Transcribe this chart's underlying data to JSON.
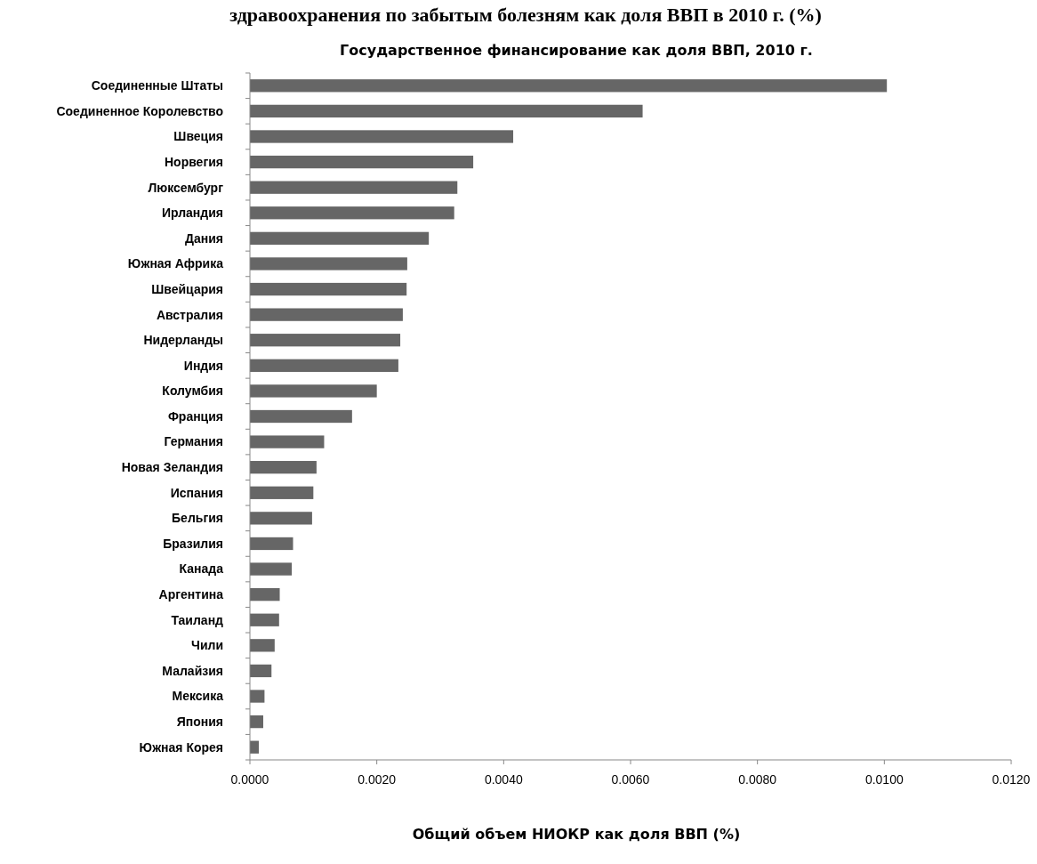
{
  "chart_data": {
    "type": "bar",
    "orientation": "horizontal",
    "title": "здравоохранения по забытым болезням как доля ВВП в 2010 г. (%)",
    "subtitle": "Государственное финансирование как доля ВВП,   2010 г.",
    "xlabel": "Общий объем НИОКР как доля ВВП (%)",
    "categories": [
      "Соединенные Штаты",
      "Соединенное Королевство",
      "Швеция",
      "Норвегия",
      "Люксембург",
      "Ирландия",
      "Дания",
      "Южная Африка",
      "Швейцария",
      "Австралия",
      "Нидерланды",
      "Индия",
      "Колумбия",
      "Франция",
      "Германия",
      "Новая Зеландия",
      "Испания",
      "Бельгия",
      "Бразилия",
      "Канада",
      "Аргентина",
      "Таиланд",
      "Чили",
      "Малайзия",
      "Мексика",
      "Япония",
      "Южная Корея"
    ],
    "values": [
      0.01004,
      0.00619,
      0.00415,
      0.00352,
      0.00327,
      0.00322,
      0.00282,
      0.00248,
      0.00247,
      0.00241,
      0.00237,
      0.00234,
      0.002,
      0.00161,
      0.00117,
      0.00105,
      0.001,
      0.00098,
      0.00068,
      0.00066,
      0.00047,
      0.00046,
      0.00039,
      0.00034,
      0.00023,
      0.00021,
      0.00014
    ],
    "color": "#666666",
    "xlim": [
      0,
      0.012
    ],
    "xticks": [
      {
        "value": 0,
        "label": "0.0000"
      },
      {
        "value": 0.002,
        "label": "0.0020"
      },
      {
        "value": 0.004,
        "label": "0.0040"
      },
      {
        "value": 0.006,
        "label": "0.0060"
      },
      {
        "value": 0.008,
        "label": "0.0080"
      },
      {
        "value": 0.01,
        "label": "0.0100"
      },
      {
        "value": 0.012,
        "label": "0.0120"
      }
    ]
  }
}
